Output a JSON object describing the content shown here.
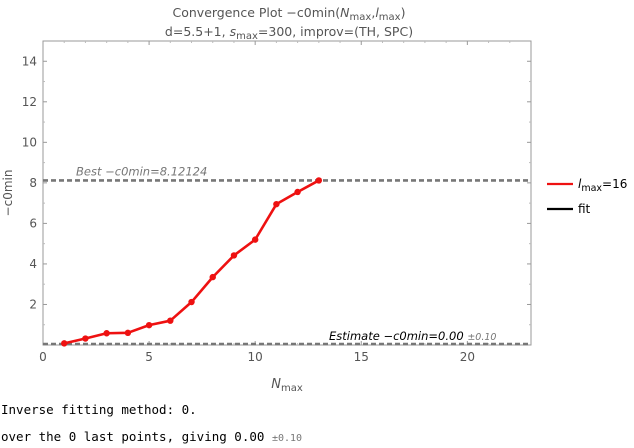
{
  "chart_data": {
    "type": "line",
    "title": "Convergence Plot −c0min(N_max, l_max)",
    "subtitle": "d=5.5+1, s_max=300, improv=(TH, SPC)",
    "xlabel": "N_max",
    "ylabel": "−c0min",
    "xlim": [
      0,
      23
    ],
    "ylim": [
      0,
      15
    ],
    "x_ticks": [
      0,
      5,
      10,
      15,
      20
    ],
    "y_ticks": [
      2,
      4,
      6,
      8,
      10,
      12,
      14
    ],
    "grid": false,
    "legend_position": "right",
    "series": [
      {
        "name": "l_max=16",
        "color": "#ee1111",
        "x": [
          1,
          2,
          3,
          4,
          5,
          6,
          7,
          8,
          9,
          10,
          11,
          12,
          13
        ],
        "y": [
          0.08,
          0.32,
          0.58,
          0.6,
          0.98,
          1.2,
          2.12,
          3.35,
          4.42,
          5.2,
          6.95,
          7.55,
          8.12
        ]
      }
    ],
    "legend_entries": [
      {
        "label_main": "l",
        "label_sub": "max",
        "label_tail": "=16",
        "color": "#ee1111"
      },
      {
        "label_main": "fit",
        "color": "#000000"
      }
    ],
    "reference_lines": [
      {
        "y": 8.12124,
        "label_prefix": "Best −c0min=",
        "label_value": "8.12124",
        "style": "dashed",
        "color": "#777777"
      },
      {
        "y": 0.0,
        "label_prefix": "Estimate −c0min=",
        "label_value": "0.00",
        "label_error": "±0.10",
        "style": "dashed",
        "color": "#777777"
      }
    ]
  },
  "text_output": {
    "line1": "Inverse fitting method: 0.",
    "line2_prefix": "over the 0 last points, giving 0.00",
    "line2_error": "±0.10"
  }
}
